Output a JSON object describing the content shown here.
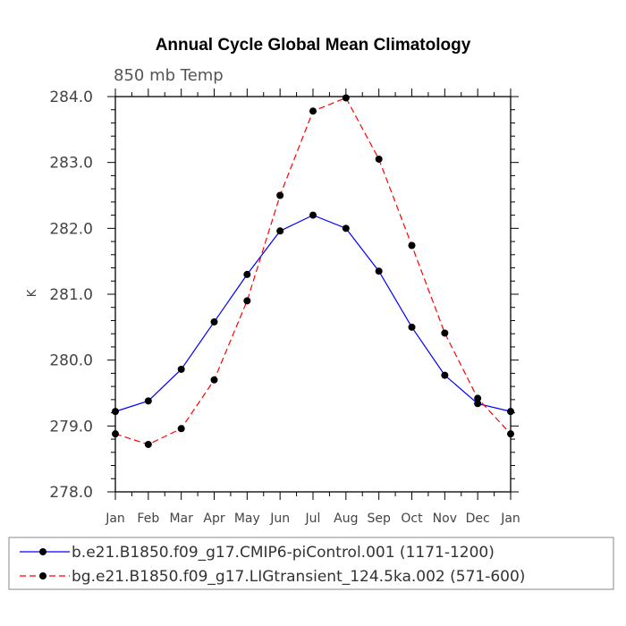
{
  "chart_data": {
    "type": "line",
    "title": "Annual Cycle Global Mean Climatology",
    "subtitle": "850 mb Temp",
    "xlabel": "",
    "ylabel": "K",
    "categories": [
      "Jan",
      "Feb",
      "Mar",
      "Apr",
      "May",
      "Jun",
      "Jul",
      "Aug",
      "Sep",
      "Oct",
      "Nov",
      "Dec",
      "Jan"
    ],
    "ylim": [
      278.0,
      284.0
    ],
    "yticks": [
      "278.0",
      "279.0",
      "280.0",
      "281.0",
      "282.0",
      "283.0",
      "284.0"
    ],
    "grid": false,
    "legend_position": "bottom",
    "series": [
      {
        "name": "b.e21.B1850.f09_g17.CMIP6-piControl.001 (1171-1200)",
        "color": "#0000ff",
        "dashed": false,
        "values": [
          279.22,
          279.38,
          279.86,
          280.58,
          281.3,
          281.96,
          282.2,
          282.0,
          281.35,
          280.5,
          279.77,
          279.34,
          279.22
        ]
      },
      {
        "name": "bg.e21.B1850.f09_g17.LIGtransient_124.5ka.002 (571-600)",
        "color": "#ff0000",
        "dashed": true,
        "values": [
          278.88,
          278.72,
          278.96,
          279.7,
          280.9,
          282.5,
          283.78,
          283.98,
          283.05,
          281.74,
          280.41,
          279.42,
          278.88
        ]
      }
    ]
  }
}
